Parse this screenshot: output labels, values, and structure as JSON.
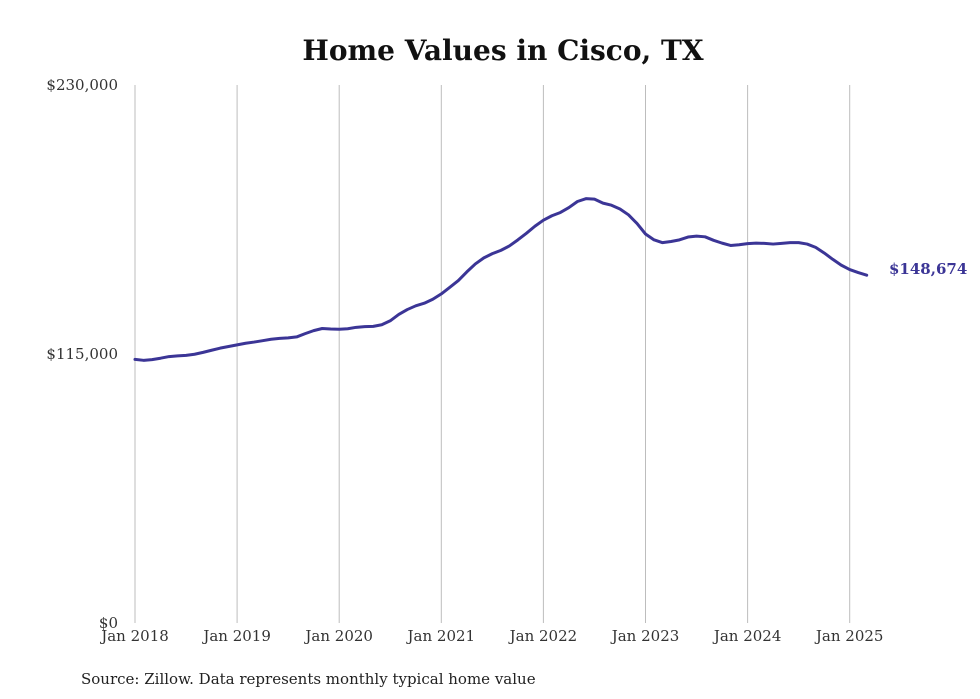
{
  "chart_data": {
    "type": "line",
    "title": "Home Values in Cisco, TX",
    "xlabel": "",
    "ylabel": "",
    "ylim": [
      0,
      230000
    ],
    "y_ticks": [
      0,
      115000,
      230000
    ],
    "y_tick_labels": [
      "$0",
      "$115,000",
      "$230,000"
    ],
    "x_tick_years": [
      2018,
      2019,
      2020,
      2021,
      2022,
      2023,
      2024,
      2025
    ],
    "x_tick_labels": [
      "Jan 2018",
      "Jan 2019",
      "Jan 2020",
      "Jan 2021",
      "Jan 2022",
      "Jan 2023",
      "Jan 2024",
      "Jan 2025"
    ],
    "grid": "vertical lines at x ticks",
    "end_label": "$148,674",
    "color": "#3b3596",
    "series": [
      {
        "points": [
          [
            "2018-01",
            112700
          ],
          [
            "2018-02",
            112300
          ],
          [
            "2018-03",
            112600
          ],
          [
            "2018-04",
            113200
          ],
          [
            "2018-05",
            113900
          ],
          [
            "2018-06",
            114200
          ],
          [
            "2018-07",
            114400
          ],
          [
            "2018-08",
            114900
          ],
          [
            "2018-09",
            115700
          ],
          [
            "2018-10",
            116600
          ],
          [
            "2018-11",
            117500
          ],
          [
            "2018-12",
            118200
          ],
          [
            "2019-01",
            118900
          ],
          [
            "2019-02",
            119600
          ],
          [
            "2019-03",
            120100
          ],
          [
            "2019-04",
            120700
          ],
          [
            "2019-05",
            121300
          ],
          [
            "2019-06",
            121700
          ],
          [
            "2019-07",
            121900
          ],
          [
            "2019-08",
            122300
          ],
          [
            "2019-09",
            123700
          ],
          [
            "2019-10",
            125000
          ],
          [
            "2019-11",
            125900
          ],
          [
            "2019-12",
            125700
          ],
          [
            "2020-01",
            125600
          ],
          [
            "2020-02",
            125800
          ],
          [
            "2020-03",
            126400
          ],
          [
            "2020-04",
            126700
          ],
          [
            "2020-05",
            126800
          ],
          [
            "2020-06",
            127500
          ],
          [
            "2020-07",
            129200
          ],
          [
            "2020-08",
            131900
          ],
          [
            "2020-09",
            134000
          ],
          [
            "2020-10",
            135600
          ],
          [
            "2020-11",
            136700
          ],
          [
            "2020-12",
            138400
          ],
          [
            "2021-01",
            140700
          ],
          [
            "2021-02",
            143500
          ],
          [
            "2021-03",
            146400
          ],
          [
            "2021-04",
            150100
          ],
          [
            "2021-05",
            153500
          ],
          [
            "2021-06",
            156100
          ],
          [
            "2021-07",
            157900
          ],
          [
            "2021-08",
            159300
          ],
          [
            "2021-09",
            161200
          ],
          [
            "2021-10",
            163800
          ],
          [
            "2021-11",
            166600
          ],
          [
            "2021-12",
            169600
          ],
          [
            "2022-01",
            172200
          ],
          [
            "2022-02",
            174100
          ],
          [
            "2022-03",
            175500
          ],
          [
            "2022-04",
            177600
          ],
          [
            "2022-05",
            180200
          ],
          [
            "2022-06",
            181400
          ],
          [
            "2022-07",
            181200
          ],
          [
            "2022-08",
            179500
          ],
          [
            "2022-09",
            178600
          ],
          [
            "2022-10",
            177000
          ],
          [
            "2022-11",
            174500
          ],
          [
            "2022-12",
            170800
          ],
          [
            "2023-01",
            166300
          ],
          [
            "2023-02",
            163800
          ],
          [
            "2023-03",
            162600
          ],
          [
            "2023-04",
            163100
          ],
          [
            "2023-05",
            163800
          ],
          [
            "2023-06",
            165000
          ],
          [
            "2023-07",
            165400
          ],
          [
            "2023-08",
            165100
          ],
          [
            "2023-09",
            163600
          ],
          [
            "2023-10",
            162400
          ],
          [
            "2023-11",
            161400
          ],
          [
            "2023-12",
            161700
          ],
          [
            "2024-01",
            162200
          ],
          [
            "2024-02",
            162400
          ],
          [
            "2024-03",
            162300
          ],
          [
            "2024-04",
            162000
          ],
          [
            "2024-05",
            162300
          ],
          [
            "2024-06",
            162600
          ],
          [
            "2024-07",
            162600
          ],
          [
            "2024-08",
            162000
          ],
          [
            "2024-09",
            160600
          ],
          [
            "2024-10",
            158200
          ],
          [
            "2024-11",
            155500
          ],
          [
            "2024-12",
            153000
          ],
          [
            "2025-01",
            151100
          ],
          [
            "2025-02",
            149800
          ],
          [
            "2025-03",
            148674
          ]
        ]
      }
    ]
  },
  "footer": {
    "source": "Source: Zillow. Data represents monthly typical home value"
  }
}
